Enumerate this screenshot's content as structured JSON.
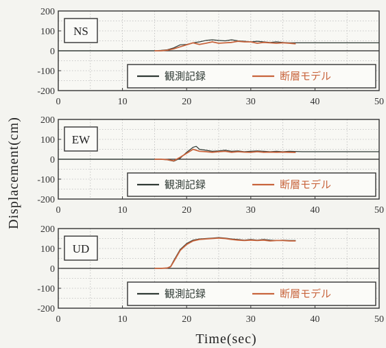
{
  "chart_data": [
    {
      "type": "line",
      "panel_label": "NS",
      "xlim": [
        0,
        50
      ],
      "ylim": [
        -200,
        200
      ],
      "xticks": [
        0,
        10,
        20,
        30,
        40,
        50
      ],
      "yticks": [
        200,
        100,
        0,
        -100,
        -200
      ],
      "grid": true,
      "legend_placement": "bottom-right",
      "series": [
        {
          "name": "観測記録",
          "color": "#2f3a34",
          "x": [
            0,
            15,
            16,
            17,
            18,
            19,
            20,
            21,
            22,
            23,
            24,
            25,
            26,
            27,
            28,
            29,
            30,
            31,
            32,
            33,
            34,
            35,
            36,
            38,
            40,
            45,
            50
          ],
          "y": [
            0,
            0,
            2,
            5,
            15,
            30,
            32,
            40,
            45,
            52,
            55,
            52,
            50,
            55,
            50,
            48,
            45,
            48,
            45,
            42,
            45,
            42,
            40,
            40,
            40,
            40,
            40
          ]
        },
        {
          "name": "断層モデル",
          "color": "#c8643c",
          "x": [
            15,
            16,
            17,
            18,
            19,
            20,
            21,
            22,
            23,
            24,
            25,
            26,
            27,
            28,
            29,
            30,
            31,
            32,
            33,
            34,
            35,
            36,
            37
          ],
          "y": [
            0,
            0,
            3,
            10,
            20,
            30,
            40,
            32,
            38,
            45,
            38,
            40,
            42,
            48,
            45,
            45,
            38,
            42,
            40,
            38,
            40,
            38,
            35
          ]
        }
      ]
    },
    {
      "type": "line",
      "panel_label": "EW",
      "xlim": [
        0,
        50
      ],
      "ylim": [
        -200,
        200
      ],
      "xticks": [
        0,
        10,
        20,
        30,
        40,
        50
      ],
      "yticks": [
        200,
        100,
        0,
        -100,
        -200
      ],
      "grid": true,
      "legend_placement": "bottom-right",
      "series": [
        {
          "name": "観測記録",
          "color": "#2f3a34",
          "x": [
            0,
            15,
            16,
            17,
            18,
            19,
            20,
            21,
            21.5,
            22,
            23,
            24,
            25,
            26,
            27,
            28,
            29,
            30,
            31,
            32,
            33,
            34,
            35,
            36,
            38,
            40,
            45,
            50
          ],
          "y": [
            0,
            0,
            0,
            -3,
            -10,
            5,
            35,
            60,
            65,
            50,
            45,
            40,
            42,
            45,
            40,
            42,
            38,
            40,
            42,
            40,
            38,
            40,
            38,
            40,
            38,
            38,
            38,
            38
          ]
        },
        {
          "name": "断層モデル",
          "color": "#c8643c",
          "x": [
            15,
            16,
            17,
            18,
            19,
            20,
            21,
            22,
            23,
            24,
            25,
            26,
            27,
            28,
            29,
            30,
            31,
            32,
            33,
            34,
            35,
            36,
            37
          ],
          "y": [
            0,
            0,
            -2,
            -8,
            10,
            30,
            50,
            40,
            38,
            35,
            38,
            40,
            35,
            38,
            36,
            35,
            38,
            35,
            36,
            35,
            36,
            35,
            34
          ]
        }
      ]
    },
    {
      "type": "line",
      "panel_label": "UD",
      "xlim": [
        0,
        50
      ],
      "ylim": [
        -200,
        200
      ],
      "xticks": [
        0,
        10,
        20,
        30,
        40,
        50
      ],
      "yticks": [
        200,
        100,
        0,
        -100,
        -200
      ],
      "grid": true,
      "legend_placement": "bottom-right",
      "series": [
        {
          "name": "観測記録",
          "color": "#2f3a34",
          "x": [
            15,
            16,
            17,
            17.5,
            18,
            19,
            20,
            21,
            22,
            23,
            24,
            25,
            26,
            27,
            28,
            29,
            30,
            31,
            32,
            33,
            34,
            35,
            36,
            37
          ],
          "y": [
            0,
            0,
            2,
            10,
            40,
            95,
            125,
            142,
            148,
            150,
            152,
            155,
            152,
            148,
            145,
            142,
            145,
            142,
            145,
            142,
            140,
            142,
            140,
            140
          ]
        },
        {
          "name": "断層モデル",
          "color": "#c8643c",
          "x": [
            15,
            16,
            17,
            17.5,
            18,
            19,
            20,
            21,
            22,
            23,
            24,
            25,
            26,
            27,
            28,
            29,
            30,
            31,
            32,
            33,
            34,
            35,
            36,
            37
          ],
          "y": [
            0,
            0,
            2,
            8,
            35,
            90,
            120,
            138,
            145,
            148,
            150,
            152,
            150,
            145,
            142,
            140,
            142,
            140,
            142,
            138,
            140,
            140,
            138,
            138
          ]
        }
      ]
    }
  ],
  "axes": {
    "ylabel": "Displacement(cm)",
    "xlabel": "Time(sec)"
  }
}
